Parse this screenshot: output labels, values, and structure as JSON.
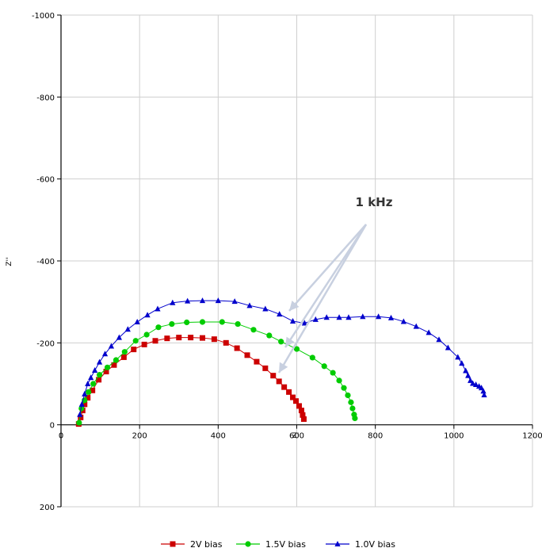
{
  "chart_data": {
    "type": "scatter",
    "title": "",
    "xlabel": "Z'",
    "ylabel": "Z''",
    "xlim": [
      0,
      1200
    ],
    "ylim": [
      200,
      -1000
    ],
    "xticks": [
      "0",
      "200",
      "400",
      "600",
      "800",
      "1000",
      "1200"
    ],
    "yticks": [
      "-1000",
      "-800",
      "-600",
      "-400",
      "-200",
      "0",
      "200"
    ],
    "grid": true,
    "legend_position": "bottom",
    "annotation": "1 kHz",
    "series": [
      {
        "name": "2V bias",
        "color": "#cc0000",
        "marker": "square",
        "x": [
          45,
          50,
          55,
          60,
          68,
          80,
          96,
          115,
          135,
          160,
          185,
          212,
          240,
          270,
          300,
          330,
          360,
          390,
          420,
          448,
          474,
          498,
          520,
          540,
          555,
          568,
          580,
          590,
          598,
          606,
          612,
          615,
          618
        ],
        "y": [
          -2,
          -18,
          -35,
          -50,
          -66,
          -84,
          -110,
          -130,
          -146,
          -165,
          -184,
          -196,
          -205,
          -211,
          -213,
          -213,
          -212,
          -209,
          -200,
          -187,
          -170,
          -154,
          -138,
          -120,
          -106,
          -92,
          -80,
          -67,
          -58,
          -46,
          -35,
          -24,
          -14
        ]
      },
      {
        "name": "1.5V bias",
        "color": "#00cc00",
        "marker": "circle",
        "x": [
          46,
          52,
          60,
          70,
          82,
          98,
          118,
          140,
          162,
          190,
          218,
          248,
          282,
          320,
          360,
          410,
          450,
          490,
          530,
          560,
          600,
          640,
          670,
          692,
          708,
          720,
          730,
          738,
          742,
          746,
          748
        ],
        "y": [
          -5,
          -40,
          -60,
          -80,
          -100,
          -122,
          -140,
          -158,
          -178,
          -205,
          -220,
          -238,
          -246,
          -250,
          -251,
          -251,
          -246,
          -232,
          -218,
          -203,
          -185,
          -164,
          -143,
          -127,
          -108,
          -90,
          -72,
          -55,
          -40,
          -25,
          -16
        ]
      },
      {
        "name": "1.0V bias",
        "color": "#0000cc",
        "marker": "triangle",
        "x": [
          48,
          53,
          60,
          68,
          76,
          86,
          98,
          112,
          128,
          148,
          170,
          194,
          220,
          246,
          284,
          322,
          360,
          400,
          442,
          480,
          520,
          556,
          590,
          620,
          648,
          676,
          708,
          732,
          768,
          808,
          840,
          872,
          904,
          936,
          962,
          985,
          1010,
          1020,
          1030,
          1036,
          1042,
          1048,
          1056,
          1064,
          1070,
          1075,
          1077
        ],
        "y": [
          -25,
          -50,
          -75,
          -100,
          -115,
          -133,
          -153,
          -173,
          -192,
          -213,
          -233,
          -251,
          -268,
          -283,
          -298,
          -302,
          -303,
          -303,
          -301,
          -291,
          -283,
          -270,
          -253,
          -248,
          -257,
          -262,
          -262,
          -262,
          -264,
          -264,
          -261,
          -252,
          -240,
          -225,
          -208,
          -188,
          -165,
          -150,
          -132,
          -120,
          -108,
          -101,
          -98,
          -94,
          -90,
          -82,
          -73
        ]
      }
    ]
  }
}
